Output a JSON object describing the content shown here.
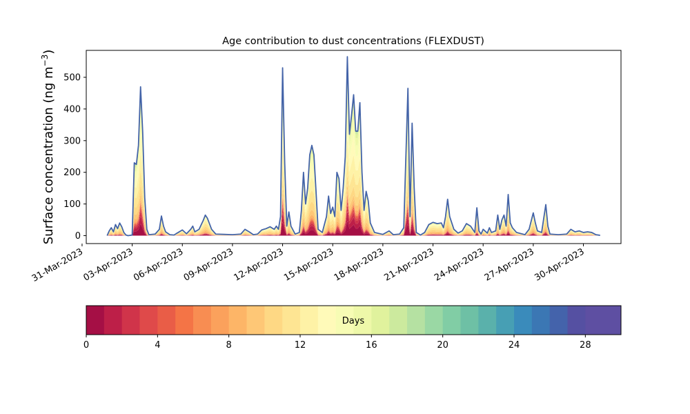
{
  "chart_data": {
    "type": "area",
    "title": "Age contribution to dust concentrations (FLEXDUST)",
    "ylabel": "Surface concentration (ng m",
    "ylabel_sup": "−3",
    "ylabel_close": ")",
    "xlabel": "",
    "ylim": [
      -25,
      585
    ],
    "xlim_dates": [
      "2023-03-31T06:00",
      "2023-05-02T06:00"
    ],
    "yticks": [
      0,
      100,
      200,
      300,
      400,
      500
    ],
    "xtick_labels": [
      "31-Mar-2023",
      "03-Apr-2023",
      "06-Apr-2023",
      "09-Apr-2023",
      "12-Apr-2023",
      "15-Apr-2023",
      "18-Apr-2023",
      "21-Apr-2023",
      "24-Apr-2023",
      "27-Apr-2023",
      "30-Apr-2023"
    ],
    "xtick_dates": [
      "2023-03-31",
      "2023-04-03",
      "2023-04-06",
      "2023-04-09",
      "2023-04-12",
      "2023-04-15",
      "2023-04-18",
      "2023-04-21",
      "2023-04-24",
      "2023-04-27",
      "2023-04-30"
    ],
    "total_series": [
      [
        "2023-04-01T12:00",
        0
      ],
      [
        "2023-04-01T15:00",
        15
      ],
      [
        "2023-04-01T18:00",
        25
      ],
      [
        "2023-04-01T21:00",
        12
      ],
      [
        "2023-04-02T00:00",
        35
      ],
      [
        "2023-04-02T03:00",
        22
      ],
      [
        "2023-04-02T06:00",
        40
      ],
      [
        "2023-04-02T09:00",
        28
      ],
      [
        "2023-04-02T12:00",
        10
      ],
      [
        "2023-04-02T15:00",
        2
      ],
      [
        "2023-04-02T18:00",
        0
      ],
      [
        "2023-04-03T00:00",
        2
      ],
      [
        "2023-04-03T03:00",
        230
      ],
      [
        "2023-04-03T06:00",
        225
      ],
      [
        "2023-04-03T09:00",
        285
      ],
      [
        "2023-04-03T12:00",
        470
      ],
      [
        "2023-04-03T15:00",
        330
      ],
      [
        "2023-04-03T18:00",
        120
      ],
      [
        "2023-04-03T21:00",
        20
      ],
      [
        "2023-04-04T00:00",
        3
      ],
      [
        "2023-04-04T09:00",
        5
      ],
      [
        "2023-04-04T15:00",
        20
      ],
      [
        "2023-04-04T18:00",
        62
      ],
      [
        "2023-04-04T21:00",
        30
      ],
      [
        "2023-04-05T00:00",
        12
      ],
      [
        "2023-04-05T06:00",
        3
      ],
      [
        "2023-04-05T12:00",
        2
      ],
      [
        "2023-04-05T18:00",
        10
      ],
      [
        "2023-04-06T00:00",
        18
      ],
      [
        "2023-04-06T06:00",
        6
      ],
      [
        "2023-04-06T12:00",
        20
      ],
      [
        "2023-04-06T15:00",
        30
      ],
      [
        "2023-04-06T18:00",
        12
      ],
      [
        "2023-04-07T00:00",
        20
      ],
      [
        "2023-04-07T06:00",
        48
      ],
      [
        "2023-04-07T09:00",
        65
      ],
      [
        "2023-04-07T12:00",
        55
      ],
      [
        "2023-04-07T18:00",
        20
      ],
      [
        "2023-04-08T00:00",
        5
      ],
      [
        "2023-04-08T12:00",
        4
      ],
      [
        "2023-04-09T00:00",
        3
      ],
      [
        "2023-04-09T12:00",
        5
      ],
      [
        "2023-04-09T18:00",
        20
      ],
      [
        "2023-04-10T00:00",
        12
      ],
      [
        "2023-04-10T06:00",
        3
      ],
      [
        "2023-04-10T12:00",
        5
      ],
      [
        "2023-04-10T18:00",
        18
      ],
      [
        "2023-04-11T00:00",
        22
      ],
      [
        "2023-04-11T06:00",
        28
      ],
      [
        "2023-04-11T12:00",
        20
      ],
      [
        "2023-04-11T15:00",
        30
      ],
      [
        "2023-04-11T18:00",
        20
      ],
      [
        "2023-04-11T21:00",
        60
      ],
      [
        "2023-04-12T00:00",
        530
      ],
      [
        "2023-04-12T03:00",
        230
      ],
      [
        "2023-04-12T06:00",
        30
      ],
      [
        "2023-04-12T09:00",
        75
      ],
      [
        "2023-04-12T12:00",
        30
      ],
      [
        "2023-04-12T18:00",
        5
      ],
      [
        "2023-04-13T00:00",
        10
      ],
      [
        "2023-04-13T03:00",
        80
      ],
      [
        "2023-04-13T06:00",
        200
      ],
      [
        "2023-04-13T09:00",
        100
      ],
      [
        "2023-04-13T12:00",
        150
      ],
      [
        "2023-04-13T15:00",
        255
      ],
      [
        "2023-04-13T18:00",
        285
      ],
      [
        "2023-04-13T21:00",
        255
      ],
      [
        "2023-04-14T00:00",
        140
      ],
      [
        "2023-04-14T03:00",
        20
      ],
      [
        "2023-04-14T09:00",
        10
      ],
      [
        "2023-04-14T15:00",
        60
      ],
      [
        "2023-04-14T18:00",
        125
      ],
      [
        "2023-04-14T21:00",
        70
      ],
      [
        "2023-04-15T00:00",
        90
      ],
      [
        "2023-04-15T03:00",
        60
      ],
      [
        "2023-04-15T06:00",
        200
      ],
      [
        "2023-04-15T09:00",
        180
      ],
      [
        "2023-04-15T12:00",
        80
      ],
      [
        "2023-04-15T15:00",
        150
      ],
      [
        "2023-04-15T18:00",
        250
      ],
      [
        "2023-04-15T21:00",
        565
      ],
      [
        "2023-04-16T00:00",
        320
      ],
      [
        "2023-04-16T03:00",
        380
      ],
      [
        "2023-04-16T06:00",
        445
      ],
      [
        "2023-04-16T09:00",
        330
      ],
      [
        "2023-04-16T12:00",
        330
      ],
      [
        "2023-04-16T15:00",
        420
      ],
      [
        "2023-04-16T18:00",
        200
      ],
      [
        "2023-04-16T21:00",
        80
      ],
      [
        "2023-04-17T00:00",
        140
      ],
      [
        "2023-04-17T03:00",
        110
      ],
      [
        "2023-04-17T06:00",
        40
      ],
      [
        "2023-04-17T12:00",
        10
      ],
      [
        "2023-04-18T00:00",
        4
      ],
      [
        "2023-04-18T09:00",
        15
      ],
      [
        "2023-04-18T15:00",
        3
      ],
      [
        "2023-04-19T00:00",
        5
      ],
      [
        "2023-04-19T06:00",
        25
      ],
      [
        "2023-04-19T12:00",
        465
      ],
      [
        "2023-04-19T15:00",
        60
      ],
      [
        "2023-04-19T18:00",
        355
      ],
      [
        "2023-04-19T21:00",
        150
      ],
      [
        "2023-04-20T00:00",
        10
      ],
      [
        "2023-04-20T06:00",
        2
      ],
      [
        "2023-04-20T12:00",
        10
      ],
      [
        "2023-04-20T18:00",
        35
      ],
      [
        "2023-04-21T00:00",
        42
      ],
      [
        "2023-04-21T06:00",
        38
      ],
      [
        "2023-04-21T12:00",
        40
      ],
      [
        "2023-04-21T15:00",
        25
      ],
      [
        "2023-04-21T18:00",
        60
      ],
      [
        "2023-04-21T21:00",
        115
      ],
      [
        "2023-04-22T00:00",
        60
      ],
      [
        "2023-04-22T06:00",
        20
      ],
      [
        "2023-04-22T12:00",
        8
      ],
      [
        "2023-04-22T18:00",
        15
      ],
      [
        "2023-04-23T00:00",
        38
      ],
      [
        "2023-04-23T06:00",
        30
      ],
      [
        "2023-04-23T12:00",
        10
      ],
      [
        "2023-04-23T15:00",
        88
      ],
      [
        "2023-04-23T18:00",
        15
      ],
      [
        "2023-04-23T21:00",
        5
      ],
      [
        "2023-04-24T00:00",
        20
      ],
      [
        "2023-04-24T06:00",
        8
      ],
      [
        "2023-04-24T09:00",
        25
      ],
      [
        "2023-04-24T12:00",
        10
      ],
      [
        "2023-04-24T18:00",
        15
      ],
      [
        "2023-04-24T21:00",
        65
      ],
      [
        "2023-04-25T00:00",
        20
      ],
      [
        "2023-04-25T03:00",
        50
      ],
      [
        "2023-04-25T06:00",
        65
      ],
      [
        "2023-04-25T09:00",
        30
      ],
      [
        "2023-04-25T12:00",
        130
      ],
      [
        "2023-04-25T15:00",
        40
      ],
      [
        "2023-04-25T18:00",
        25
      ],
      [
        "2023-04-26T00:00",
        10
      ],
      [
        "2023-04-26T12:00",
        3
      ],
      [
        "2023-04-26T18:00",
        20
      ],
      [
        "2023-04-27T00:00",
        72
      ],
      [
        "2023-04-27T03:00",
        40
      ],
      [
        "2023-04-27T06:00",
        15
      ],
      [
        "2023-04-27T12:00",
        10
      ],
      [
        "2023-04-27T18:00",
        98
      ],
      [
        "2023-04-27T21:00",
        30
      ],
      [
        "2023-04-28T00:00",
        5
      ],
      [
        "2023-04-28T12:00",
        3
      ],
      [
        "2023-04-29T00:00",
        5
      ],
      [
        "2023-04-29T06:00",
        20
      ],
      [
        "2023-04-29T12:00",
        12
      ],
      [
        "2023-04-29T18:00",
        15
      ],
      [
        "2023-04-30T00:00",
        10
      ],
      [
        "2023-04-30T06:00",
        12
      ],
      [
        "2023-04-30T12:00",
        10
      ],
      [
        "2023-04-30T18:00",
        3
      ],
      [
        "2023-05-01T00:00",
        1
      ]
    ],
    "colorbar": {
      "label": "Days",
      "range": [
        0,
        30
      ],
      "tick_values": [
        0,
        4,
        8,
        12,
        16,
        20,
        24,
        28
      ],
      "colors": [
        "#a50f45",
        "#bd1f48",
        "#d0344a",
        "#df4a4a",
        "#e95d47",
        "#f47446",
        "#f88d52",
        "#fba15c",
        "#fdb567",
        "#fec776",
        "#fed884",
        "#fee593",
        "#fef2a6",
        "#fffab9",
        "#f7fcb4",
        "#eef8a9",
        "#e0f29d",
        "#ccea9e",
        "#b5e1a2",
        "#9ad8a4",
        "#81cda5",
        "#6ec0a5",
        "#5ab1ab",
        "#479fb4",
        "#3a8bbb",
        "#3b77b4",
        "#4463ab",
        "#5550a2",
        "#5e4fa2"
      ]
    }
  }
}
